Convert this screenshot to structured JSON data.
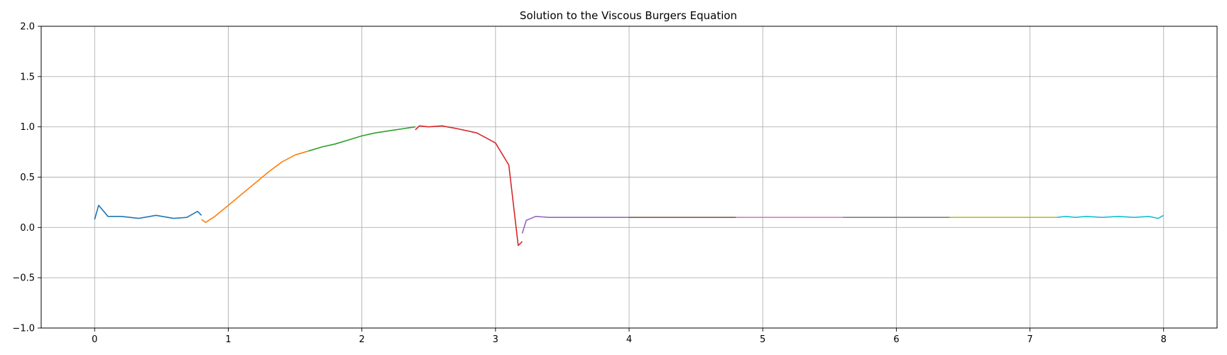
{
  "chart_data": {
    "type": "line",
    "title": "Solution to the Viscous Burgers Equation",
    "xlabel": "",
    "ylabel": "",
    "xlim": [
      -0.4,
      8.4
    ],
    "ylim": [
      -1.0,
      2.0
    ],
    "xticks": [
      0,
      1,
      2,
      3,
      4,
      5,
      6,
      7,
      8
    ],
    "yticks": [
      -1.0,
      -0.5,
      0.0,
      0.5,
      1.0,
      1.5,
      2.0
    ],
    "xtick_labels": [
      "0",
      "1",
      "2",
      "3",
      "4",
      "5",
      "6",
      "7",
      "8"
    ],
    "ytick_labels": [
      "−1.0",
      "−0.5",
      "0.0",
      "0.5",
      "1.0",
      "1.5",
      "2.0"
    ],
    "grid": true,
    "legend": "none",
    "series": [
      {
        "color": "#1f77b4",
        "x": [
          0.0,
          0.03,
          0.1,
          0.2,
          0.33,
          0.46,
          0.59,
          0.69,
          0.77,
          0.8
        ],
        "y": [
          0.08,
          0.22,
          0.11,
          0.11,
          0.09,
          0.12,
          0.09,
          0.1,
          0.16,
          0.12
        ]
      },
      {
        "color": "#ff7f0e",
        "x": [
          0.8,
          0.83,
          0.9,
          1.0,
          1.1,
          1.2,
          1.3,
          1.4,
          1.5,
          1.6
        ],
        "y": [
          0.08,
          0.05,
          0.11,
          0.22,
          0.33,
          0.44,
          0.55,
          0.65,
          0.72,
          0.76
        ]
      },
      {
        "color": "#2ca02c",
        "x": [
          1.6,
          1.7,
          1.8,
          1.9,
          2.0,
          2.1,
          2.2,
          2.3,
          2.4
        ],
        "y": [
          0.76,
          0.8,
          0.83,
          0.87,
          0.91,
          0.94,
          0.96,
          0.98,
          1.0
        ]
      },
      {
        "color": "#d62728",
        "x": [
          2.4,
          2.43,
          2.5,
          2.6,
          2.72,
          2.86,
          3.0,
          3.1,
          3.17,
          3.2
        ],
        "y": [
          0.97,
          1.01,
          1.0,
          1.01,
          0.98,
          0.94,
          0.84,
          0.62,
          -0.18,
          -0.14
        ]
      },
      {
        "color": "#9467bd",
        "x": [
          3.2,
          3.23,
          3.3,
          3.4,
          3.5,
          3.6,
          3.7,
          3.8,
          3.9,
          4.0
        ],
        "y": [
          -0.06,
          0.07,
          0.11,
          0.1,
          0.1,
          0.1,
          0.1,
          0.1,
          0.1,
          0.1
        ]
      },
      {
        "color": "#8c564b",
        "x": [
          4.0,
          4.2,
          4.4,
          4.6,
          4.8
        ],
        "y": [
          0.1,
          0.1,
          0.1,
          0.1,
          0.1
        ]
      },
      {
        "color": "#e377c2",
        "x": [
          4.8,
          5.0,
          5.2,
          5.4,
          5.6
        ],
        "y": [
          0.1,
          0.1,
          0.1,
          0.1,
          0.1
        ]
      },
      {
        "color": "#7f7f7f",
        "x": [
          5.6,
          5.8,
          6.0,
          6.2,
          6.4
        ],
        "y": [
          0.1,
          0.1,
          0.1,
          0.1,
          0.1
        ]
      },
      {
        "color": "#bcbd22",
        "x": [
          6.4,
          6.6,
          6.8,
          7.0,
          7.2
        ],
        "y": [
          0.1,
          0.1,
          0.1,
          0.1,
          0.1
        ]
      },
      {
        "color": "#17becf",
        "x": [
          7.2,
          7.27,
          7.34,
          7.42,
          7.54,
          7.66,
          7.78,
          7.89,
          7.96,
          8.0
        ],
        "y": [
          0.1,
          0.11,
          0.1,
          0.11,
          0.1,
          0.11,
          0.1,
          0.11,
          0.09,
          0.12
        ]
      }
    ]
  }
}
